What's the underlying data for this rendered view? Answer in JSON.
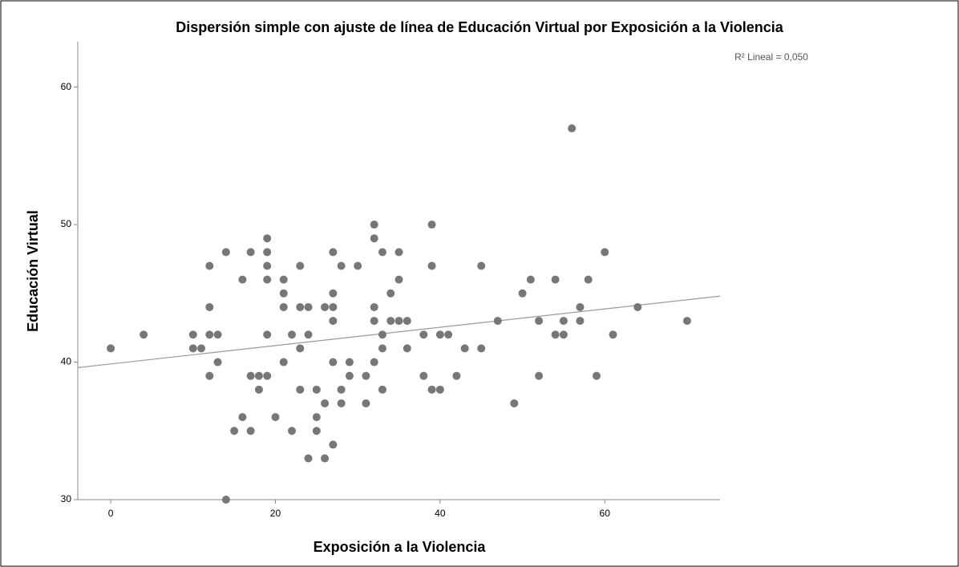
{
  "chart_data": {
    "type": "scatter",
    "title": "Dispersión simple con ajuste de línea de Educación Virtual por  Exposición a la Violencia",
    "xlabel": "Exposición a la Violencia",
    "ylabel": "Educación Virtual",
    "annotation": "R² Lineal = 0,050",
    "color": "#777777",
    "x": [
      0,
      4,
      10,
      10,
      11,
      12,
      12,
      12,
      12,
      13,
      13,
      14,
      14,
      15,
      16,
      16,
      17,
      17,
      17,
      18,
      18,
      19,
      19,
      19,
      19,
      19,
      19,
      20,
      21,
      21,
      21,
      21,
      22,
      22,
      23,
      23,
      23,
      23,
      24,
      24,
      24,
      25,
      25,
      25,
      26,
      26,
      26,
      27,
      27,
      27,
      27,
      27,
      27,
      28,
      28,
      28,
      29,
      29,
      30,
      31,
      31,
      32,
      32,
      32,
      32,
      32,
      33,
      33,
      33,
      33,
      34,
      34,
      35,
      35,
      35,
      36,
      36,
      38,
      38,
      39,
      39,
      39,
      40,
      40,
      41,
      42,
      43,
      45,
      45,
      47,
      49,
      50,
      51,
      52,
      52,
      54,
      54,
      55,
      55,
      56,
      57,
      57,
      58,
      59,
      60,
      61,
      64,
      70
    ],
    "y": [
      41,
      42,
      42,
      41,
      41,
      47,
      44,
      42,
      39,
      42,
      40,
      48,
      30,
      35,
      36,
      46,
      48,
      39,
      35,
      39,
      38,
      49,
      48,
      47,
      46,
      42,
      39,
      36,
      46,
      45,
      44,
      40,
      42,
      35,
      47,
      44,
      41,
      38,
      44,
      42,
      33,
      38,
      36,
      35,
      44,
      37,
      33,
      48,
      45,
      44,
      43,
      40,
      34,
      47,
      38,
      37,
      40,
      39,
      47,
      39,
      37,
      50,
      49,
      44,
      43,
      40,
      48,
      42,
      41,
      38,
      45,
      43,
      48,
      46,
      43,
      43,
      41,
      42,
      39,
      50,
      47,
      38,
      42,
      38,
      42,
      39,
      41,
      47,
      41,
      43,
      37,
      45,
      46,
      43,
      39,
      46,
      42,
      43,
      42,
      57,
      44,
      43,
      46,
      39,
      48,
      42,
      44,
      43
    ],
    "fit_line": {
      "x": [
        -4,
        74
      ],
      "y": [
        39.6,
        44.8
      ],
      "color": "#999999"
    },
    "xlim": [
      -4,
      74
    ],
    "xticks": [
      0,
      20,
      40,
      60
    ],
    "ylim": [
      30,
      63.3
    ],
    "yticks": [
      30,
      40,
      50,
      60
    ]
  }
}
